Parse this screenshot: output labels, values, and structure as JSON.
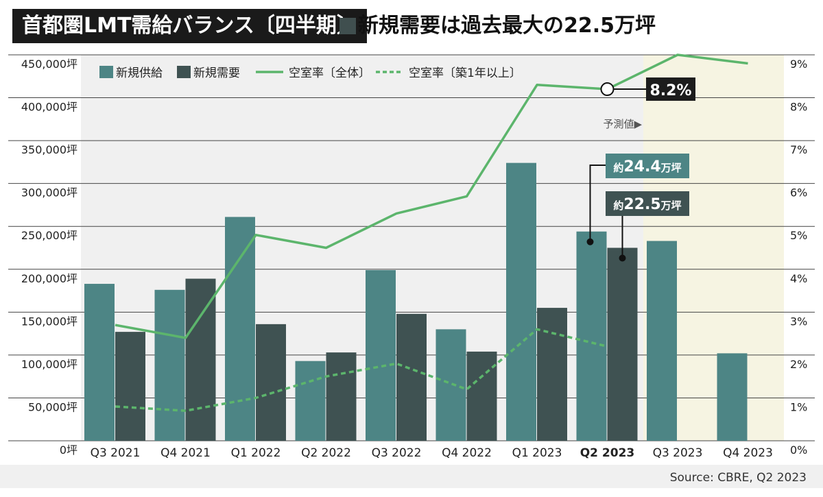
{
  "header": {
    "title": "首都圏LMT需給バランス〔四半期〕",
    "subtitle": "新規需要は過去最大の22.5万坪"
  },
  "colors": {
    "supply": "#4d8585",
    "demand": "#3f5252",
    "vacancy": "#5cb56c",
    "forecast_bg": "#f6f4e2",
    "plot_bg": "#f0f0f0"
  },
  "chart_data": {
    "type": "bar",
    "categories": [
      "Q3 2021",
      "Q4 2021",
      "Q1 2022",
      "Q2 2022",
      "Q3 2022",
      "Q4 2022",
      "Q1 2023",
      "Q2 2023",
      "Q3 2023",
      "Q4 2023"
    ],
    "highlight_category": "Q2 2023",
    "series": [
      {
        "name": "新規供給",
        "type": "bar",
        "axis": "left",
        "values": [
          183000,
          176000,
          261000,
          93000,
          199000,
          130000,
          324000,
          244000,
          233000,
          102000
        ]
      },
      {
        "name": "新規需要",
        "type": "bar",
        "axis": "left",
        "values": [
          127000,
          189000,
          136000,
          103000,
          148000,
          104000,
          155000,
          225000,
          null,
          null
        ]
      },
      {
        "name": "空室率〔全体〕",
        "type": "line",
        "axis": "right",
        "values": [
          2.7,
          2.4,
          4.8,
          4.5,
          5.3,
          5.7,
          8.3,
          8.2,
          9.0,
          8.8
        ]
      },
      {
        "name": "空室率〔築1年以上〕",
        "type": "line",
        "axis": "right",
        "style": "dashed",
        "values": [
          0.8,
          0.7,
          1.0,
          1.5,
          1.8,
          1.2,
          2.6,
          2.2,
          null,
          null
        ]
      }
    ],
    "left_axis": {
      "ylim": [
        0,
        450000
      ],
      "ticks": [
        {
          "value": 0,
          "label": "0坪"
        },
        {
          "value": 50000,
          "label": "50,000坪"
        },
        {
          "value": 100000,
          "label": "100,000坪"
        },
        {
          "value": 150000,
          "label": "150,000坪"
        },
        {
          "value": 200000,
          "label": "200,000坪"
        },
        {
          "value": 250000,
          "label": "250,000坪"
        },
        {
          "value": 300000,
          "label": "300,000坪"
        },
        {
          "value": 350000,
          "label": "350,000坪"
        },
        {
          "value": 400000,
          "label": "400,000坪"
        },
        {
          "value": 450000,
          "label": "450,000坪"
        }
      ]
    },
    "right_axis": {
      "ylim": [
        0,
        9
      ],
      "ticks": [
        {
          "value": 0,
          "label": "0%"
        },
        {
          "value": 1,
          "label": "1%"
        },
        {
          "value": 2,
          "label": "2%"
        },
        {
          "value": 3,
          "label": "3%"
        },
        {
          "value": 4,
          "label": "4%"
        },
        {
          "value": 5,
          "label": "5%"
        },
        {
          "value": 6,
          "label": "6%"
        },
        {
          "value": 7,
          "label": "7%"
        },
        {
          "value": 8,
          "label": "8%"
        },
        {
          "value": 9,
          "label": "9%"
        }
      ]
    },
    "grid": true,
    "legend_position": "top-left",
    "forecast": {
      "label": "予測値▶",
      "start_category": "Q3 2023"
    },
    "annotations": [
      {
        "text": "8.2%",
        "target": "空室率〔全体〕",
        "category": "Q2 2023",
        "value": 8.2,
        "style": "dark"
      },
      {
        "prefix": "約",
        "number": "24.4",
        "unit": "万坪",
        "target": "新規供給",
        "category": "Q2 2023",
        "value": 244000,
        "style": "supply"
      },
      {
        "prefix": "約",
        "number": "22.5",
        "unit": "万坪",
        "target": "新規需要",
        "category": "Q2 2023",
        "value": 225000,
        "style": "demand"
      }
    ],
    "source": "Source: CBRE, Q2 2023"
  }
}
